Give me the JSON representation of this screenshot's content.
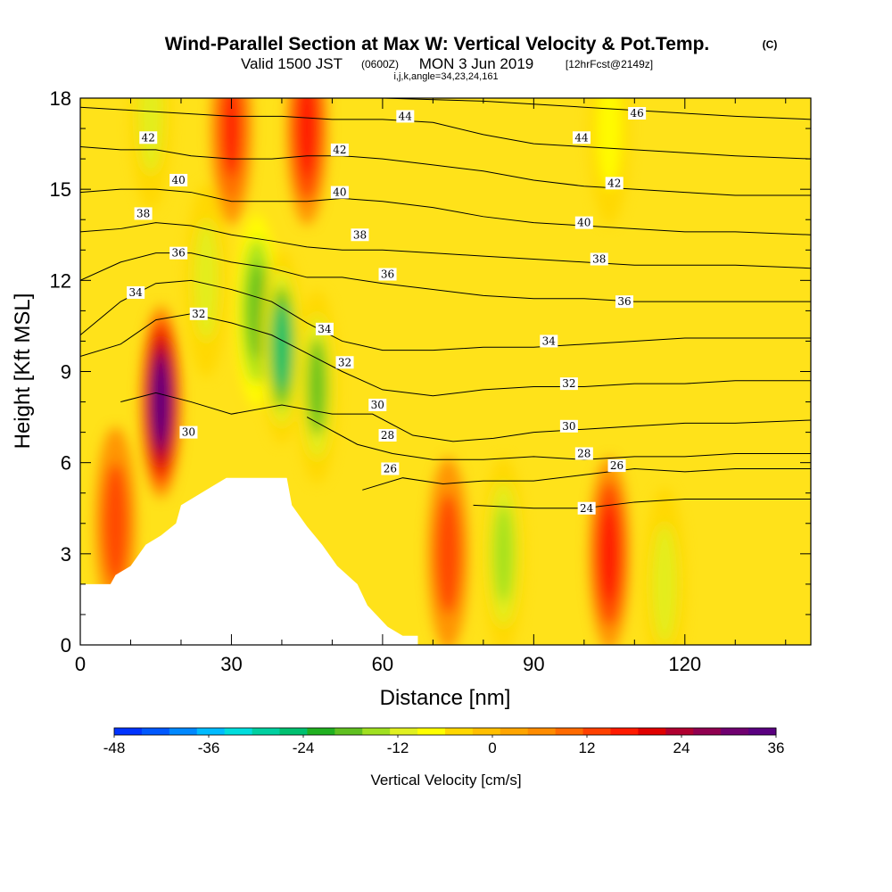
{
  "header": {
    "title": "Wind-Parallel Section at Max W: Vertical Velocity & Pot.Temp.",
    "title_mark": "(C)",
    "valid_prefix": "Valid 1500 JST",
    "valid_zulu": "(0600Z)",
    "valid_date": "MON 3 Jun 2019",
    "forecast": "[12hrFcst@2149z]",
    "section_info": "i,j,k,angle=34,23,24,161"
  },
  "chart_data": {
    "type": "heatmap",
    "xlabel": "Distance [nm]",
    "ylabel": "Height [Kft MSL]",
    "xlim": [
      0,
      145
    ],
    "ylim": [
      0,
      18
    ],
    "x_ticks": [
      "0",
      "30",
      "60",
      "90",
      "120"
    ],
    "x_tick_values": [
      0,
      30,
      60,
      90,
      120
    ],
    "y_ticks": [
      "0",
      "3",
      "6",
      "9",
      "12",
      "15",
      "18"
    ],
    "y_tick_values": [
      0,
      3,
      6,
      9,
      12,
      15,
      18
    ],
    "colorbar": {
      "label": "Vertical Velocity [cm/s]",
      "tick_labels": [
        "-48",
        "-36",
        "-24",
        "-12",
        "0",
        "12",
        "24",
        "36"
      ],
      "tick_values": [
        -48,
        -36,
        -24,
        -12,
        0,
        12,
        24,
        36
      ],
      "colors": [
        "#0033ff",
        "#0058ff",
        "#0088ff",
        "#00bbff",
        "#00dddd",
        "#00d0a0",
        "#00c070",
        "#20b020",
        "#60c020",
        "#a0e020",
        "#e0f020",
        "#ffff00",
        "#ffd700",
        "#ffbf00",
        "#ffa500",
        "#ff8c00",
        "#ff6a00",
        "#ff4000",
        "#ff1a00",
        "#e00000",
        "#b00030",
        "#900050",
        "#700070",
        "#5a0080"
      ]
    },
    "velocity_features": [
      {
        "x": 16,
        "y": 8,
        "w": 38,
        "kind": "updraft"
      },
      {
        "x": 30,
        "y": 17,
        "w": 16,
        "kind": "updraft"
      },
      {
        "x": 45,
        "y": 17,
        "w": 18,
        "kind": "updraft"
      },
      {
        "x": 35,
        "y": 11,
        "w": -20,
        "kind": "downdraft"
      },
      {
        "x": 40,
        "y": 9.8,
        "w": -24,
        "kind": "downdraft"
      },
      {
        "x": 47,
        "y": 8.5,
        "w": -18,
        "kind": "downdraft"
      },
      {
        "x": 25,
        "y": 12,
        "w": -12,
        "kind": "downdraft"
      },
      {
        "x": 14,
        "y": 17.5,
        "w": -10,
        "kind": "downdraft"
      },
      {
        "x": 84,
        "y": 3,
        "w": -16,
        "kind": "downdraft"
      },
      {
        "x": 105,
        "y": 17,
        "w": -8,
        "kind": "downdraft"
      },
      {
        "x": 116,
        "y": 2,
        "w": -10,
        "kind": "downdraft"
      },
      {
        "x": 105,
        "y": 3,
        "w": 18,
        "kind": "updraft"
      },
      {
        "x": 73,
        "y": 3,
        "w": 14,
        "kind": "updraft"
      },
      {
        "x": 7,
        "y": 4,
        "w": 12,
        "kind": "updraft"
      }
    ],
    "terrain_profile": [
      {
        "x": 0,
        "y": 2.0
      },
      {
        "x": 6,
        "y": 2.0
      },
      {
        "x": 7,
        "y": 2.3
      },
      {
        "x": 10,
        "y": 2.6
      },
      {
        "x": 13,
        "y": 3.3
      },
      {
        "x": 16,
        "y": 3.6
      },
      {
        "x": 19,
        "y": 4.0
      },
      {
        "x": 20,
        "y": 4.6
      },
      {
        "x": 23,
        "y": 4.9
      },
      {
        "x": 26,
        "y": 5.2
      },
      {
        "x": 29,
        "y": 5.5
      },
      {
        "x": 32,
        "y": 5.5
      },
      {
        "x": 38,
        "y": 5.5
      },
      {
        "x": 41,
        "y": 5.5
      },
      {
        "x": 42,
        "y": 4.6
      },
      {
        "x": 45,
        "y": 3.9
      },
      {
        "x": 48,
        "y": 3.3
      },
      {
        "x": 51,
        "y": 2.6
      },
      {
        "x": 55,
        "y": 2.0
      },
      {
        "x": 57,
        "y": 1.3
      },
      {
        "x": 61,
        "y": 0.6
      },
      {
        "x": 64,
        "y": 0.3
      },
      {
        "x": 67,
        "y": 0.3
      }
    ],
    "contours": [
      {
        "label": "24",
        "points": [
          [
            78,
            4.6
          ],
          [
            90,
            4.5
          ],
          [
            100,
            4.5
          ],
          [
            110,
            4.7
          ],
          [
            120,
            4.8
          ],
          [
            130,
            4.8
          ],
          [
            145,
            4.8
          ]
        ]
      },
      {
        "label": "26",
        "points": [
          [
            56,
            5.1
          ],
          [
            64,
            5.5
          ],
          [
            72,
            5.3
          ],
          [
            80,
            5.4
          ],
          [
            90,
            5.4
          ],
          [
            100,
            5.6
          ],
          [
            110,
            5.8
          ],
          [
            120,
            5.7
          ],
          [
            130,
            5.8
          ],
          [
            145,
            5.8
          ]
        ]
      },
      {
        "label": "28",
        "points": [
          [
            45,
            7.5
          ],
          [
            55,
            6.6
          ],
          [
            62,
            6.3
          ],
          [
            70,
            6.1
          ],
          [
            80,
            6.1
          ],
          [
            90,
            6.2
          ],
          [
            100,
            6.1
          ],
          [
            110,
            6.2
          ],
          [
            120,
            6.2
          ],
          [
            130,
            6.3
          ],
          [
            145,
            6.3
          ]
        ]
      },
      {
        "label": "30",
        "points": [
          [
            8,
            8.0
          ],
          [
            15,
            8.3
          ],
          [
            22,
            8.0
          ],
          [
            30,
            7.6
          ],
          [
            40,
            7.9
          ],
          [
            50,
            7.6
          ],
          [
            58,
            7.6
          ],
          [
            66,
            6.9
          ],
          [
            74,
            6.7
          ],
          [
            82,
            6.8
          ],
          [
            90,
            7.0
          ],
          [
            100,
            7.1
          ],
          [
            110,
            7.2
          ],
          [
            120,
            7.3
          ],
          [
            130,
            7.3
          ],
          [
            145,
            7.4
          ]
        ]
      },
      {
        "label": "32",
        "points": [
          [
            0,
            9.5
          ],
          [
            8,
            9.9
          ],
          [
            15,
            10.7
          ],
          [
            22,
            10.9
          ],
          [
            30,
            10.6
          ],
          [
            38,
            10.2
          ],
          [
            45,
            9.6
          ],
          [
            52,
            9.0
          ],
          [
            60,
            8.4
          ],
          [
            70,
            8.2
          ],
          [
            80,
            8.4
          ],
          [
            90,
            8.5
          ],
          [
            100,
            8.5
          ],
          [
            110,
            8.6
          ],
          [
            120,
            8.6
          ],
          [
            130,
            8.7
          ],
          [
            145,
            8.7
          ]
        ]
      },
      {
        "label": "34",
        "points": [
          [
            0,
            10.2
          ],
          [
            8,
            11.3
          ],
          [
            15,
            11.9
          ],
          [
            22,
            12.0
          ],
          [
            30,
            11.7
          ],
          [
            38,
            11.3
          ],
          [
            45,
            10.6
          ],
          [
            52,
            10.0
          ],
          [
            60,
            9.7
          ],
          [
            70,
            9.7
          ],
          [
            80,
            9.8
          ],
          [
            90,
            9.8
          ],
          [
            100,
            9.9
          ],
          [
            110,
            10.0
          ],
          [
            120,
            10.1
          ],
          [
            130,
            10.1
          ],
          [
            145,
            10.1
          ]
        ]
      },
      {
        "label": "36",
        "points": [
          [
            0,
            12.0
          ],
          [
            8,
            12.6
          ],
          [
            15,
            12.9
          ],
          [
            22,
            12.9
          ],
          [
            30,
            12.6
          ],
          [
            38,
            12.4
          ],
          [
            45,
            12.1
          ],
          [
            52,
            12.1
          ],
          [
            60,
            11.9
          ],
          [
            70,
            11.7
          ],
          [
            80,
            11.5
          ],
          [
            90,
            11.4
          ],
          [
            100,
            11.4
          ],
          [
            110,
            11.3
          ],
          [
            120,
            11.3
          ],
          [
            130,
            11.3
          ],
          [
            145,
            11.3
          ]
        ]
      },
      {
        "label": "38",
        "points": [
          [
            0,
            13.6
          ],
          [
            8,
            13.7
          ],
          [
            15,
            13.9
          ],
          [
            22,
            13.8
          ],
          [
            30,
            13.5
          ],
          [
            38,
            13.3
          ],
          [
            45,
            13.1
          ],
          [
            52,
            13.0
          ],
          [
            60,
            13.0
          ],
          [
            70,
            12.9
          ],
          [
            80,
            12.8
          ],
          [
            90,
            12.7
          ],
          [
            100,
            12.6
          ],
          [
            110,
            12.5
          ],
          [
            120,
            12.5
          ],
          [
            130,
            12.5
          ],
          [
            145,
            12.4
          ]
        ]
      },
      {
        "label": "40",
        "points": [
          [
            0,
            14.9
          ],
          [
            8,
            15.0
          ],
          [
            15,
            15.0
          ],
          [
            22,
            14.9
          ],
          [
            30,
            14.6
          ],
          [
            38,
            14.6
          ],
          [
            45,
            14.6
          ],
          [
            52,
            14.7
          ],
          [
            60,
            14.6
          ],
          [
            70,
            14.4
          ],
          [
            80,
            14.1
          ],
          [
            90,
            13.9
          ],
          [
            100,
            13.8
          ],
          [
            110,
            13.7
          ],
          [
            120,
            13.6
          ],
          [
            130,
            13.6
          ],
          [
            145,
            13.5
          ]
        ]
      },
      {
        "label": "42",
        "points": [
          [
            0,
            16.4
          ],
          [
            8,
            16.3
          ],
          [
            15,
            16.3
          ],
          [
            22,
            16.1
          ],
          [
            30,
            16.0
          ],
          [
            38,
            16.0
          ],
          [
            45,
            16.1
          ],
          [
            52,
            16.1
          ],
          [
            60,
            16.0
          ],
          [
            70,
            15.8
          ],
          [
            80,
            15.6
          ],
          [
            90,
            15.3
          ],
          [
            100,
            15.1
          ],
          [
            110,
            15.0
          ],
          [
            120,
            14.9
          ],
          [
            130,
            14.8
          ],
          [
            145,
            14.8
          ]
        ]
      },
      {
        "label": "44",
        "points": [
          [
            0,
            17.7
          ],
          [
            10,
            17.6
          ],
          [
            20,
            17.5
          ],
          [
            30,
            17.4
          ],
          [
            40,
            17.4
          ],
          [
            50,
            17.3
          ],
          [
            60,
            17.3
          ],
          [
            70,
            17.2
          ],
          [
            80,
            16.8
          ],
          [
            90,
            16.5
          ],
          [
            100,
            16.4
          ],
          [
            110,
            16.3
          ],
          [
            120,
            16.2
          ],
          [
            130,
            16.1
          ],
          [
            145,
            16.0
          ]
        ]
      },
      {
        "label": "46",
        "points": [
          [
            60,
            18.0
          ],
          [
            80,
            17.9
          ],
          [
            90,
            17.8
          ],
          [
            100,
            17.7
          ],
          [
            110,
            17.6
          ],
          [
            120,
            17.5
          ],
          [
            130,
            17.4
          ],
          [
            145,
            17.3
          ]
        ]
      }
    ],
    "contour_labels": [
      {
        "text": "42",
        "x": 13.5,
        "y": 16.7
      },
      {
        "text": "40",
        "x": 19.5,
        "y": 15.3
      },
      {
        "text": "38",
        "x": 12.5,
        "y": 14.2
      },
      {
        "text": "36",
        "x": 19.5,
        "y": 12.9
      },
      {
        "text": "34",
        "x": 11,
        "y": 11.6
      },
      {
        "text": "32",
        "x": 23.5,
        "y": 10.9
      },
      {
        "text": "30",
        "x": 21.5,
        "y": 7.0
      },
      {
        "text": "44",
        "x": 64.5,
        "y": 17.4
      },
      {
        "text": "42",
        "x": 51.5,
        "y": 16.3
      },
      {
        "text": "40",
        "x": 51.5,
        "y": 14.9
      },
      {
        "text": "38",
        "x": 55.5,
        "y": 13.5
      },
      {
        "text": "36",
        "x": 61,
        "y": 12.2
      },
      {
        "text": "34",
        "x": 48.5,
        "y": 10.4
      },
      {
        "text": "32",
        "x": 52.5,
        "y": 9.3
      },
      {
        "text": "30",
        "x": 59,
        "y": 7.9
      },
      {
        "text": "28",
        "x": 61,
        "y": 6.9
      },
      {
        "text": "26",
        "x": 61.5,
        "y": 5.8
      },
      {
        "text": "46",
        "x": 110.5,
        "y": 17.5
      },
      {
        "text": "44",
        "x": 99.5,
        "y": 16.7
      },
      {
        "text": "42",
        "x": 106,
        "y": 15.2
      },
      {
        "text": "40",
        "x": 100,
        "y": 13.9
      },
      {
        "text": "38",
        "x": 103,
        "y": 12.7
      },
      {
        "text": "36",
        "x": 108,
        "y": 11.3
      },
      {
        "text": "34",
        "x": 93,
        "y": 10.0
      },
      {
        "text": "32",
        "x": 97,
        "y": 8.6
      },
      {
        "text": "30",
        "x": 97,
        "y": 7.2
      },
      {
        "text": "28",
        "x": 100,
        "y": 6.3
      },
      {
        "text": "26",
        "x": 106.5,
        "y": 5.9
      },
      {
        "text": "24",
        "x": 100.5,
        "y": 4.5
      }
    ]
  }
}
